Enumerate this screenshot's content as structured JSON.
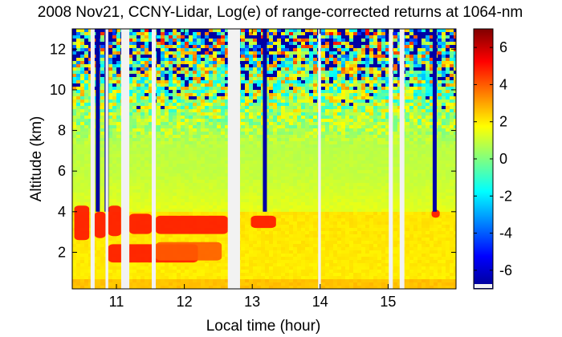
{
  "chart_data": {
    "type": "heatmap",
    "title": "2008 Nov21, CCNY-Lidar, Log(e) of range-corrected returns at 1064-nm",
    "xlabel": "Local time (hour)",
    "ylabel": "Altitude (km)",
    "xlim": [
      10.35,
      16.0
    ],
    "ylim": [
      0.2,
      13.0
    ],
    "x_ticks": [
      {
        "value": 11,
        "label": "11"
      },
      {
        "value": 12,
        "label": "12"
      },
      {
        "value": 13,
        "label": "13"
      },
      {
        "value": 14,
        "label": "14"
      },
      {
        "value": 15,
        "label": "15"
      }
    ],
    "y_ticks": [
      {
        "value": 2,
        "label": "2"
      },
      {
        "value": 4,
        "label": "4"
      },
      {
        "value": 6,
        "label": "6"
      },
      {
        "value": 8,
        "label": "8"
      },
      {
        "value": 10,
        "label": "10"
      },
      {
        "value": 12,
        "label": "12"
      }
    ],
    "colorbar": {
      "range": [
        -7,
        7
      ],
      "colormap": "jet",
      "ticks": [
        {
          "value": 6,
          "label": "6"
        },
        {
          "value": 4,
          "label": "4"
        },
        {
          "value": 2,
          "label": "2"
        },
        {
          "value": 0,
          "label": "0"
        },
        {
          "value": -2,
          "label": "-2"
        },
        {
          "value": -4,
          "label": "-4"
        },
        {
          "value": -6,
          "label": "-6"
        }
      ]
    },
    "data_gaps_hours": [
      [
        10.62,
        10.68
      ],
      [
        10.84,
        10.88
      ],
      [
        11.07,
        11.19
      ],
      [
        11.52,
        11.58
      ],
      [
        12.64,
        12.82
      ],
      [
        13.97,
        14.01
      ],
      [
        15.01,
        15.07
      ],
      [
        15.17,
        15.24
      ]
    ],
    "cloud_layers": [
      {
        "t_start": 10.38,
        "t_end": 10.6,
        "alt_bottom": 2.6,
        "alt_top": 4.3,
        "value": 5
      },
      {
        "t_start": 10.68,
        "t_end": 10.84,
        "alt_bottom": 2.7,
        "alt_top": 4.0,
        "value": 5
      },
      {
        "t_start": 10.88,
        "t_end": 11.07,
        "alt_bottom": 2.8,
        "alt_top": 4.3,
        "value": 5
      },
      {
        "t_start": 11.19,
        "t_end": 11.52,
        "alt_bottom": 2.9,
        "alt_top": 3.9,
        "value": 5
      },
      {
        "t_start": 11.58,
        "t_end": 12.64,
        "alt_bottom": 2.9,
        "alt_top": 3.8,
        "value": 5
      },
      {
        "t_start": 12.98,
        "t_end": 13.35,
        "alt_bottom": 3.2,
        "alt_top": 3.8,
        "value": 5
      },
      {
        "t_start": 15.64,
        "t_end": 15.76,
        "alt_bottom": 3.7,
        "alt_top": 4.1,
        "value": 5
      },
      {
        "t_start": 10.88,
        "t_end": 12.2,
        "alt_bottom": 1.5,
        "alt_top": 2.4,
        "value": 5
      },
      {
        "t_start": 11.58,
        "t_end": 12.55,
        "alt_bottom": 1.6,
        "alt_top": 2.5,
        "value": 4
      }
    ],
    "low_signal_streaks_hours": [
      10.72,
      10.85,
      13.18,
      15.68
    ]
  }
}
